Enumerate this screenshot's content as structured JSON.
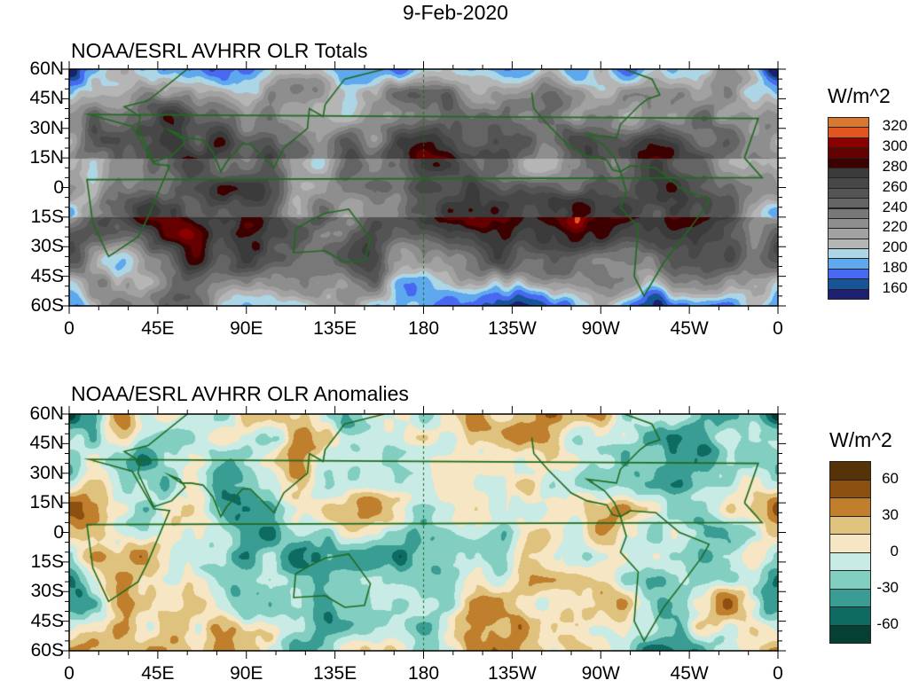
{
  "title": "9-Feb-2020",
  "panels": [
    {
      "id": "totals",
      "subtitle": "NOAA/ESRL AVHRR OLR Totals",
      "legend": {
        "title": "W/m^2",
        "labels": [
          "320",
          "300",
          "280",
          "260",
          "240",
          "220",
          "200",
          "180",
          "160"
        ],
        "levels": [
          160,
          170,
          180,
          190,
          200,
          210,
          220,
          230,
          240,
          250,
          260,
          270,
          280,
          290,
          300,
          310,
          320
        ],
        "colors": [
          "#1c1f72",
          "#185596",
          "#4868f2",
          "#5ea8ee",
          "#acd6e6",
          "#b5b5b5",
          "#a1a1a1",
          "#8e8e8e",
          "#787878",
          "#646464",
          "#545454",
          "#474747",
          "#3b3b3b",
          "#3c0000",
          "#640000",
          "#8a0000",
          "#e0561e",
          "#d9782e"
        ]
      }
    },
    {
      "id": "anomalies",
      "subtitle": "NOAA/ESRL AVHRR OLR Anomalies",
      "legend": {
        "title": "W/m^2",
        "labels": [
          "60",
          "30",
          "0",
          "-30",
          "-60"
        ],
        "levels": [
          -60,
          -45,
          -30,
          -15,
          0,
          15,
          30,
          45,
          60
        ],
        "colors": [
          "#063f34",
          "#0d6b62",
          "#3a9d93",
          "#82cfc2",
          "#c8ebe5",
          "#f6e6c3",
          "#dfc27d",
          "#c07f2d",
          "#8c5010",
          "#553307"
        ]
      }
    }
  ],
  "axes": {
    "y_labels": [
      "60N",
      "45N",
      "30N",
      "15N",
      "0",
      "15S",
      "30S",
      "45S",
      "60S"
    ],
    "x_labels": [
      "0",
      "45E",
      "90E",
      "135E",
      "180",
      "135W",
      "90W",
      "45W",
      "0"
    ]
  }
}
